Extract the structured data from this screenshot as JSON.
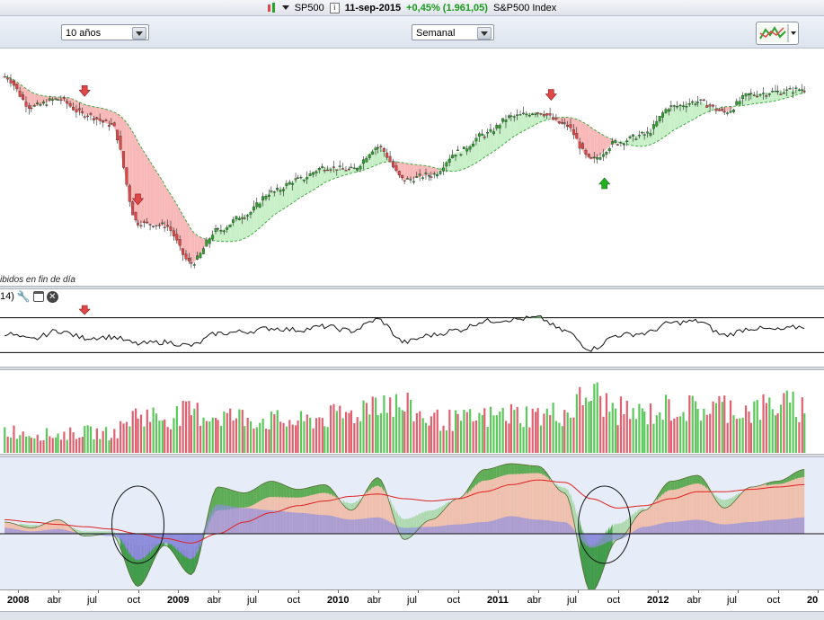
{
  "header": {
    "symbol": "SP500",
    "info_icon": "info-icon",
    "date": "11-sep-2015",
    "change": "+0,45% (1.961,05)",
    "index_name": "S&P500 Index"
  },
  "toolbar": {
    "period_select": "10 años",
    "interval_select": "Semanal"
  },
  "price_panel": {
    "footer_text": "ibidos en fin de día"
  },
  "rsi_panel": {
    "header_text": "14)"
  },
  "x_axis": {
    "labels": [
      {
        "text": "2008",
        "bold": true
      },
      {
        "text": "abr",
        "bold": false
      },
      {
        "text": "jul",
        "bold": false
      },
      {
        "text": "oct",
        "bold": false
      },
      {
        "text": "2009",
        "bold": true
      },
      {
        "text": "abr",
        "bold": false
      },
      {
        "text": "jul",
        "bold": false
      },
      {
        "text": "oct",
        "bold": false
      },
      {
        "text": "2010",
        "bold": true
      },
      {
        "text": "abr",
        "bold": false
      },
      {
        "text": "jul",
        "bold": false
      },
      {
        "text": "oct",
        "bold": false
      },
      {
        "text": "2011",
        "bold": true
      },
      {
        "text": "abr",
        "bold": false
      },
      {
        "text": "jul",
        "bold": false
      },
      {
        "text": "oct",
        "bold": false
      },
      {
        "text": "2012",
        "bold": true
      },
      {
        "text": "abr",
        "bold": false
      },
      {
        "text": "jul",
        "bold": false
      },
      {
        "text": "oct",
        "bold": false
      },
      {
        "text": "20",
        "bold": true
      }
    ]
  },
  "colors": {
    "up": "#2ea02e",
    "down": "#e04848",
    "cloud_bear": "#f8b8b8",
    "cloud_bull": "#c8f0c8",
    "arrow_down": "#e04848",
    "arrow_up": "#22b022"
  },
  "chart_data": [
    {
      "type": "candlestick",
      "x": [
        "2007-12",
        "2008-02",
        "2008-04",
        "2008-06",
        "2008-08",
        "2008-10",
        "2008-12",
        "2009-02",
        "2009-04",
        "2009-06",
        "2009-08",
        "2009-10",
        "2009-12",
        "2010-02",
        "2010-04",
        "2010-06",
        "2010-08",
        "2010-10",
        "2010-12",
        "2011-02",
        "2011-04",
        "2011-06",
        "2011-08",
        "2011-10",
        "2011-12",
        "2012-02",
        "2012-04",
        "2012-06",
        "2012-08",
        "2012-10",
        "2012-12"
      ],
      "values": [
        1480,
        1360,
        1390,
        1330,
        1290,
        900,
        890,
        740,
        870,
        930,
        1020,
        1070,
        1120,
        1110,
        1200,
        1070,
        1090,
        1180,
        1250,
        1320,
        1340,
        1290,
        1150,
        1220,
        1250,
        1360,
        1380,
        1340,
        1410,
        1420,
        1430
      ],
      "markers": [
        {
          "x": "2008-06",
          "type": "sell"
        },
        {
          "x": "2008-10",
          "type": "sell"
        },
        {
          "x": "2011-05",
          "type": "sell"
        },
        {
          "x": "2011-09",
          "type": "buy"
        }
      ]
    },
    {
      "type": "line",
      "x": [
        "2007-12",
        "2008-02",
        "2008-04",
        "2008-06",
        "2008-08",
        "2008-10",
        "2008-12",
        "2009-02",
        "2009-04",
        "2009-06",
        "2009-08",
        "2009-10",
        "2009-12",
        "2010-02",
        "2010-04",
        "2010-06",
        "2010-08",
        "2010-10",
        "2010-12",
        "2011-02",
        "2011-04",
        "2011-06",
        "2011-08",
        "2011-10",
        "2011-12",
        "2012-02",
        "2012-04",
        "2012-06",
        "2012-08",
        "2012-10",
        "2012-12"
      ],
      "values": [
        52,
        45,
        55,
        47,
        48,
        40,
        42,
        38,
        52,
        54,
        58,
        56,
        60,
        55,
        68,
        42,
        50,
        56,
        66,
        68,
        70,
        55,
        34,
        50,
        52,
        64,
        66,
        50,
        58,
        56,
        60
      ]
    },
    {
      "type": "bar",
      "x": [
        "2007-12",
        "2008-02",
        "2008-04",
        "2008-06",
        "2008-08",
        "2008-10",
        "2008-12",
        "2009-02",
        "2009-04",
        "2009-06",
        "2009-08",
        "2009-10",
        "2009-12",
        "2010-02",
        "2010-04",
        "2010-06",
        "2010-08",
        "2010-10",
        "2010-12",
        "2011-02",
        "2011-04",
        "2011-06",
        "2011-08",
        "2011-10",
        "2011-12",
        "2012-02",
        "2012-04",
        "2012-06",
        "2012-08",
        "2012-10",
        "2012-12"
      ],
      "values": [
        35,
        30,
        28,
        32,
        30,
        60,
        55,
        62,
        58,
        55,
        50,
        48,
        55,
        60,
        85,
        70,
        52,
        50,
        55,
        60,
        58,
        62,
        90,
        65,
        60,
        70,
        68,
        72,
        66,
        75,
        70
      ]
    },
    {
      "type": "area",
      "x": [
        "2007-12",
        "2008-02",
        "2008-04",
        "2008-06",
        "2008-08",
        "2008-10",
        "2008-12",
        "2009-02",
        "2009-04",
        "2009-06",
        "2009-08",
        "2009-10",
        "2009-12",
        "2010-02",
        "2010-04",
        "2010-06",
        "2010-08",
        "2010-10",
        "2010-12",
        "2011-02",
        "2011-04",
        "2011-06",
        "2011-08",
        "2011-10",
        "2011-12",
        "2012-02",
        "2012-04",
        "2012-06",
        "2012-08",
        "2012-10",
        "2012-12"
      ],
      "series": [
        {
          "values": [
            10,
            5,
            12,
            -2,
            0,
            -45,
            -10,
            -35,
            40,
            35,
            45,
            38,
            42,
            20,
            48,
            -5,
            12,
            30,
            55,
            60,
            58,
            35,
            -50,
            -5,
            20,
            45,
            50,
            22,
            40,
            45,
            55
          ]
        },
        {
          "values": [
            5,
            2,
            4,
            0,
            -2,
            -10,
            -8,
            -15,
            25,
            22,
            20,
            18,
            16,
            12,
            14,
            5,
            6,
            8,
            10,
            15,
            12,
            10,
            -12,
            -5,
            6,
            10,
            12,
            8,
            10,
            12,
            14
          ]
        },
        {
          "values": [
            12,
            10,
            8,
            6,
            4,
            0,
            -4,
            -8,
            0,
            10,
            18,
            24,
            28,
            32,
            34,
            30,
            28,
            30,
            36,
            42,
            46,
            44,
            30,
            22,
            24,
            30,
            36,
            36,
            38,
            40,
            42
          ]
        }
      ],
      "markers": [
        {
          "x": "2008-10",
          "type": "ellipse"
        },
        {
          "x": "2011-09",
          "type": "ellipse"
        }
      ]
    }
  ]
}
